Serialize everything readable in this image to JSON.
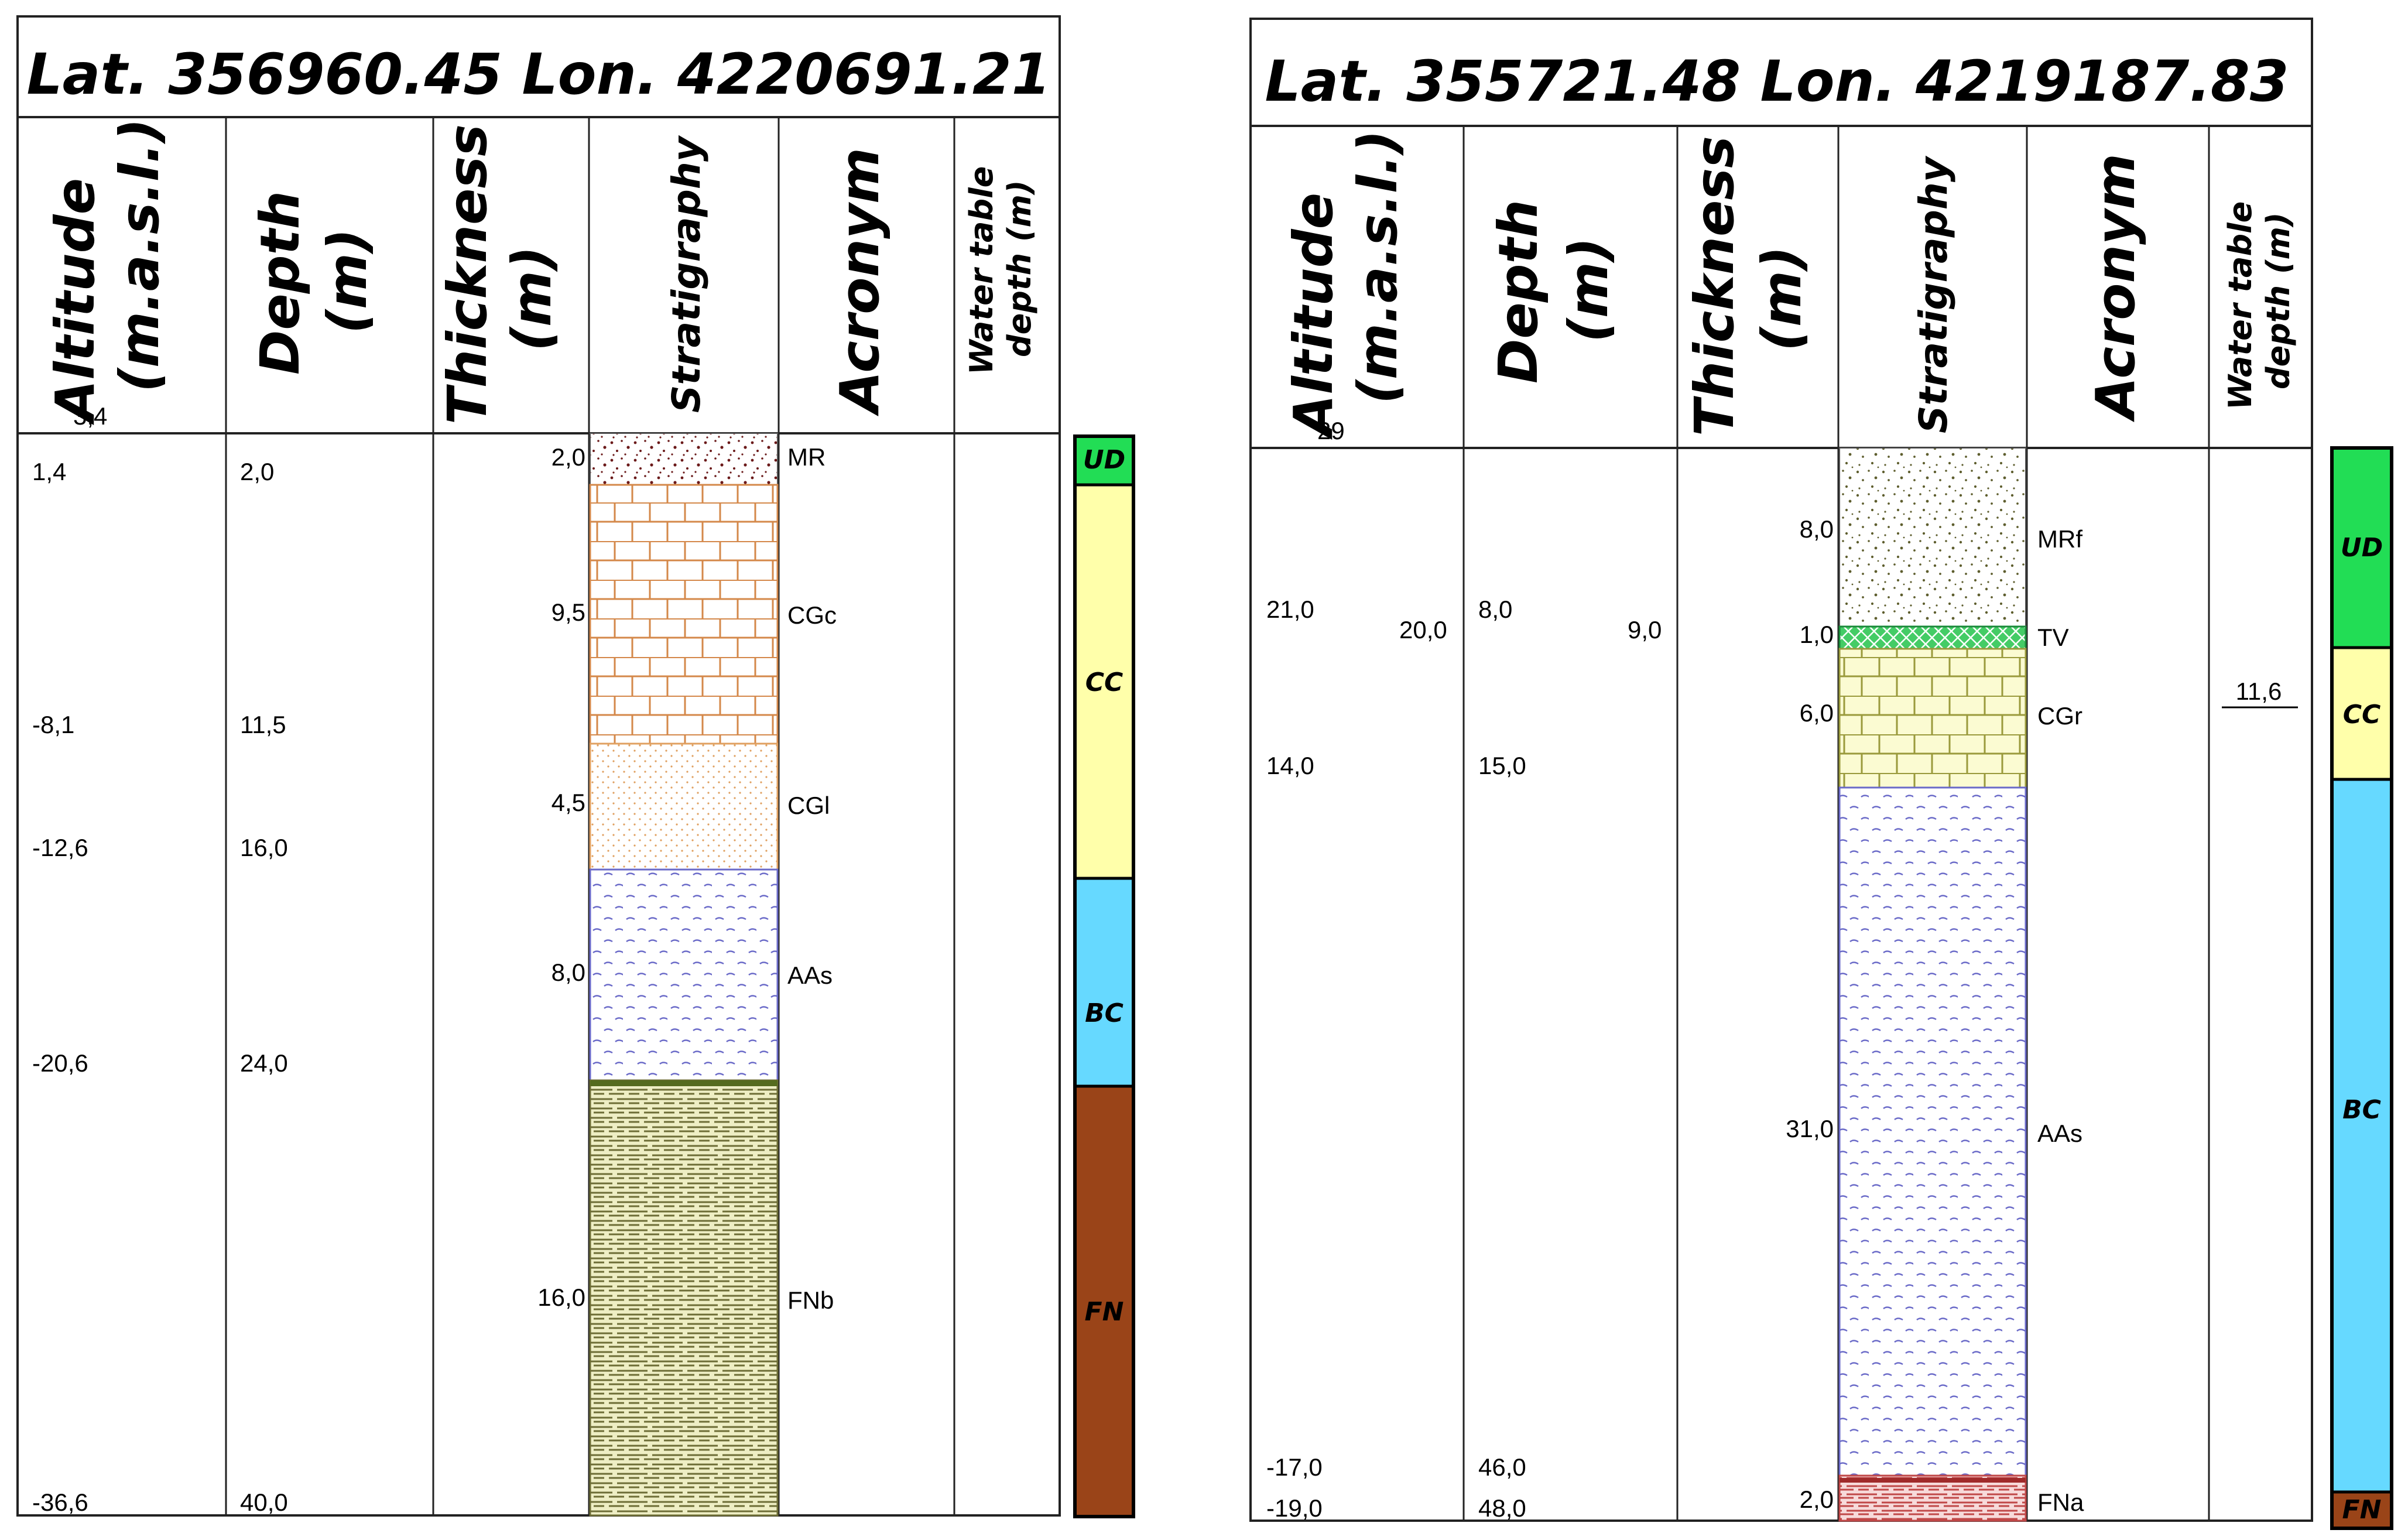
{
  "logs": [
    {
      "title": "Lat. 356960.45  Lon. 4220691.21",
      "headers": {
        "altitude": [
          "Altitude",
          "(m.a.s.l.)"
        ],
        "depth": [
          "Depth",
          "(m)"
        ],
        "thickness": [
          "Thickness",
          "(m)"
        ],
        "stratigraphy": "Stratigraphy",
        "acronym": "Acronym",
        "water_table": [
          "Water table",
          "depth (m)"
        ]
      },
      "top_altitude": "3,4",
      "altitude_marks": [
        "1,4",
        "-8,1",
        "-12,6",
        "-20,6",
        "-36,6"
      ],
      "depth_marks": [
        "2,0",
        "11,5",
        "16,0",
        "24,0",
        "40,0"
      ],
      "layers": [
        {
          "thickness": "2,0",
          "acronym": "MR",
          "pattern": "mr"
        },
        {
          "thickness": "9,5",
          "acronym": "CGc",
          "pattern": "cgc"
        },
        {
          "thickness": "4,5",
          "acronym": "CGl",
          "pattern": "cgl"
        },
        {
          "thickness": "8,0",
          "acronym": "AAs",
          "pattern": "aas"
        },
        {
          "thickness": "16,0",
          "acronym": "FNb",
          "pattern": "fnb"
        }
      ],
      "zones": [
        {
          "label": "UD",
          "color": "#22dd55"
        },
        {
          "label": "CC",
          "color": "#ffffaa"
        },
        {
          "label": "BC",
          "color": "#66d9ff"
        },
        {
          "label": "FN",
          "color": "#9a4418"
        }
      ]
    },
    {
      "title": "Lat. 355721.48  Lon. 4219187.83",
      "headers": {
        "altitude": [
          "Altitude",
          "(m.a.s.l.)"
        ],
        "depth": [
          "Depth",
          "(m)"
        ],
        "thickness": [
          "Thickness",
          "(m)"
        ],
        "stratigraphy": "Stratigraphy",
        "acronym": "Acronym",
        "water_table": [
          "Water table",
          "depth (m)"
        ]
      },
      "top_altitude": "29",
      "altitude_marks": [
        "21,0",
        "20,0",
        "14,0",
        "-17,0",
        "-19,0"
      ],
      "depth_marks": [
        "8,0",
        "9,0",
        "15,0",
        "46,0",
        "48,0"
      ],
      "water_table_value": "11,6",
      "layers": [
        {
          "thickness": "8,0",
          "acronym": "MRf",
          "pattern": "mrf"
        },
        {
          "thickness": "1,0",
          "acronym": "TV",
          "pattern": "tv"
        },
        {
          "thickness": "6,0",
          "acronym": "CGr",
          "pattern": "cgr"
        },
        {
          "thickness": "31,0",
          "acronym": "AAs",
          "pattern": "aas"
        },
        {
          "thickness": "2,0",
          "acronym": "FNa",
          "pattern": "fna"
        }
      ],
      "zones": [
        {
          "label": "UD",
          "color": "#22dd55"
        },
        {
          "label": "CC",
          "color": "#ffffaa"
        },
        {
          "label": "BC",
          "color": "#66d9ff"
        },
        {
          "label": "FN",
          "color": "#9a4418"
        }
      ]
    }
  ]
}
